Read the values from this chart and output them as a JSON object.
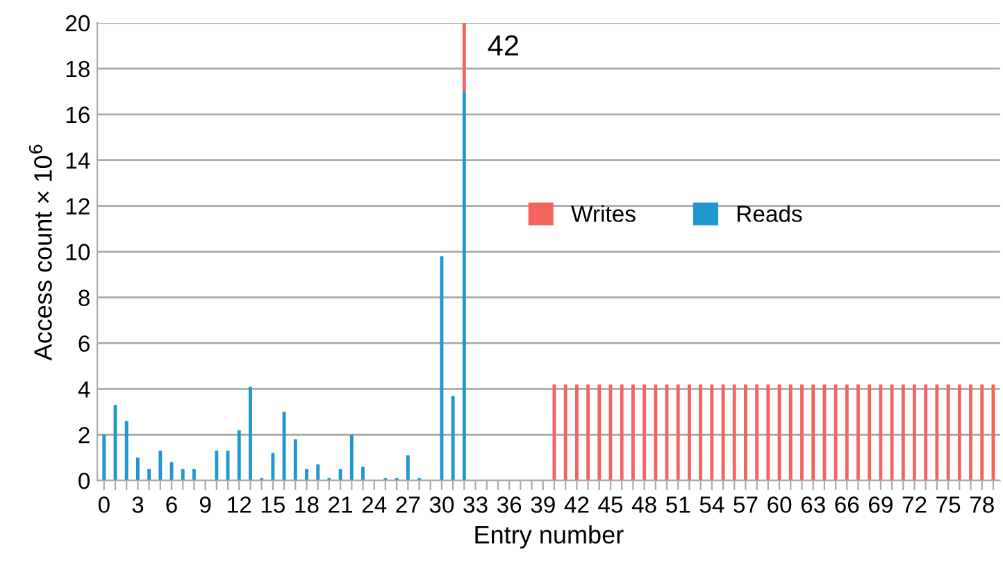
{
  "chart_data": {
    "type": "bar",
    "stacked": true,
    "xlabel": "Entry number",
    "ylabel": "Access count × 10$^{6}$",
    "categories": [
      "0",
      null,
      null,
      "3",
      null,
      null,
      "6",
      null,
      null,
      "9",
      null,
      null,
      "12",
      null,
      null,
      "15",
      null,
      null,
      "18",
      null,
      null,
      "21",
      null,
      null,
      "24",
      null,
      null,
      "27",
      null,
      null,
      "30",
      null,
      null,
      "33",
      null,
      null,
      "36",
      null,
      null,
      "39",
      null,
      null,
      "42",
      null,
      null,
      "45",
      null,
      null,
      "48",
      null,
      null,
      "51",
      null,
      null,
      "54",
      null,
      null,
      "57",
      null,
      null,
      "60",
      null,
      null,
      "63",
      null,
      null,
      "66",
      null,
      null,
      "69",
      null,
      null,
      "72",
      null,
      null,
      "75",
      null,
      null,
      "78",
      null
    ],
    "series": [
      {
        "name": "Reads",
        "color": "#1f97d0",
        "values": [
          2.0,
          3.3,
          2.6,
          1.0,
          0.5,
          1.3,
          0.8,
          0.5,
          0.5,
          0,
          1.3,
          1.3,
          2.2,
          4.1,
          0.1,
          1.2,
          3.0,
          1.8,
          0.5,
          0.7,
          0.1,
          0.5,
          2.0,
          0.6,
          0,
          0.1,
          0.1,
          1.1,
          0.1,
          0,
          9.8,
          3.7,
          17.0,
          0,
          0,
          0,
          0,
          0,
          0,
          0,
          null,
          null,
          null,
          null,
          null,
          null,
          null,
          null,
          null,
          null,
          null,
          null,
          null,
          null,
          null,
          null,
          null,
          null,
          null,
          null,
          null,
          null,
          null,
          null,
          null,
          null,
          null,
          null,
          null,
          null,
          null,
          null,
          null,
          null,
          null,
          null,
          null,
          null,
          null,
          null
        ]
      },
      {
        "name": "Writes",
        "color": "#f4645f",
        "values": [
          null,
          null,
          null,
          null,
          null,
          null,
          null,
          null,
          null,
          null,
          null,
          null,
          null,
          null,
          null,
          null,
          null,
          null,
          null,
          null,
          null,
          null,
          null,
          null,
          null,
          null,
          null,
          null,
          null,
          null,
          null,
          null,
          3.0,
          null,
          null,
          null,
          null,
          null,
          null,
          null,
          4.2,
          4.2,
          4.2,
          4.2,
          4.2,
          4.2,
          4.2,
          4.2,
          4.2,
          4.2,
          4.2,
          4.2,
          4.2,
          4.2,
          4.2,
          4.2,
          4.2,
          4.2,
          4.2,
          4.2,
          4.2,
          4.2,
          4.2,
          4.2,
          4.2,
          4.2,
          4.2,
          4.2,
          4.2,
          4.2,
          4.2,
          4.2,
          4.2,
          4.2,
          4.2,
          4.2,
          4.2,
          4.2,
          4.2,
          4.2
        ]
      }
    ],
    "ylim": [
      0,
      20
    ],
    "yticks": [
      0,
      2,
      4,
      6,
      8,
      10,
      12,
      14,
      16,
      18,
      20
    ],
    "grid": "y",
    "legend": "center",
    "annotations": [
      "42"
    ]
  }
}
